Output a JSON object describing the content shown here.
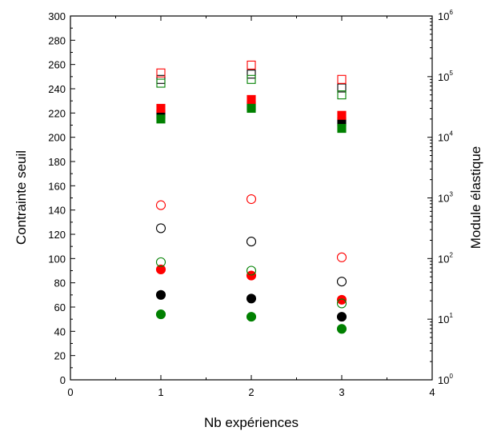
{
  "chart_data": {
    "type": "scatter",
    "xlabel": "Nb expériences",
    "ylabel_left": "Contrainte seuil",
    "ylabel_right": "Module élastique",
    "xlim": [
      0,
      4
    ],
    "ylim_left": [
      0,
      300
    ],
    "ylim_right": [
      1,
      1000000
    ],
    "right_scale": "log",
    "grid": false,
    "legend": "none",
    "x_ticks": [
      "0",
      "1",
      "2",
      "3",
      "4"
    ],
    "y_left_ticks": [
      "0",
      "20",
      "40",
      "60",
      "80",
      "100",
      "120",
      "140",
      "160",
      "180",
      "200",
      "220",
      "240",
      "260",
      "280",
      "300"
    ],
    "y_right_ticks": [
      {
        "base": "10",
        "exp": "0"
      },
      {
        "base": "10",
        "exp": "1"
      },
      {
        "base": "10",
        "exp": "2"
      },
      {
        "base": "10",
        "exp": "3"
      },
      {
        "base": "10",
        "exp": "4"
      },
      {
        "base": "10",
        "exp": "5"
      },
      {
        "base": "10",
        "exp": "6"
      }
    ],
    "series": [
      {
        "axis": "left",
        "marker": "circle",
        "filled": true,
        "color": "#000000",
        "x": [
          1,
          2,
          3
        ],
        "y": [
          70,
          67,
          52
        ]
      },
      {
        "axis": "left",
        "marker": "circle",
        "filled": true,
        "color": "#ff0000",
        "x": [
          1,
          2,
          3
        ],
        "y": [
          91,
          86,
          66
        ]
      },
      {
        "axis": "left",
        "marker": "circle",
        "filled": true,
        "color": "#008000",
        "x": [
          1,
          2,
          3
        ],
        "y": [
          54,
          52,
          42
        ]
      },
      {
        "axis": "left",
        "marker": "circle",
        "filled": false,
        "color": "#000000",
        "x": [
          1,
          2,
          3
        ],
        "y": [
          125,
          114,
          81
        ]
      },
      {
        "axis": "left",
        "marker": "circle",
        "filled": false,
        "color": "#ff0000",
        "x": [
          1,
          2,
          3
        ],
        "y": [
          144,
          149,
          101
        ]
      },
      {
        "axis": "left",
        "marker": "circle",
        "filled": false,
        "color": "#008000",
        "x": [
          1,
          2,
          3
        ],
        "y": [
          97,
          90,
          63
        ]
      },
      {
        "axis": "right",
        "marker": "square",
        "filled": true,
        "color": "#000000",
        "x": [
          1,
          2,
          3
        ],
        "y": [
          24000,
          33000,
          18000
        ]
      },
      {
        "axis": "right",
        "marker": "square",
        "filled": true,
        "color": "#ff0000",
        "x": [
          1,
          2,
          3
        ],
        "y": [
          30000,
          42000,
          23000
        ]
      },
      {
        "axis": "right",
        "marker": "square",
        "filled": true,
        "color": "#008000",
        "x": [
          1,
          2,
          3
        ],
        "y": [
          20000,
          30000,
          14000
        ]
      },
      {
        "axis": "right",
        "marker": "square",
        "filled": false,
        "color": "#000000",
        "x": [
          1,
          2,
          3
        ],
        "y": [
          90000,
          110000,
          65000
        ]
      },
      {
        "axis": "right",
        "marker": "square",
        "filled": false,
        "color": "#ff0000",
        "x": [
          1,
          2,
          3
        ],
        "y": [
          115000,
          155000,
          90000
        ]
      },
      {
        "axis": "right",
        "marker": "square",
        "filled": false,
        "color": "#008000",
        "x": [
          1,
          2,
          3
        ],
        "y": [
          78000,
          90000,
          50000
        ]
      }
    ]
  }
}
